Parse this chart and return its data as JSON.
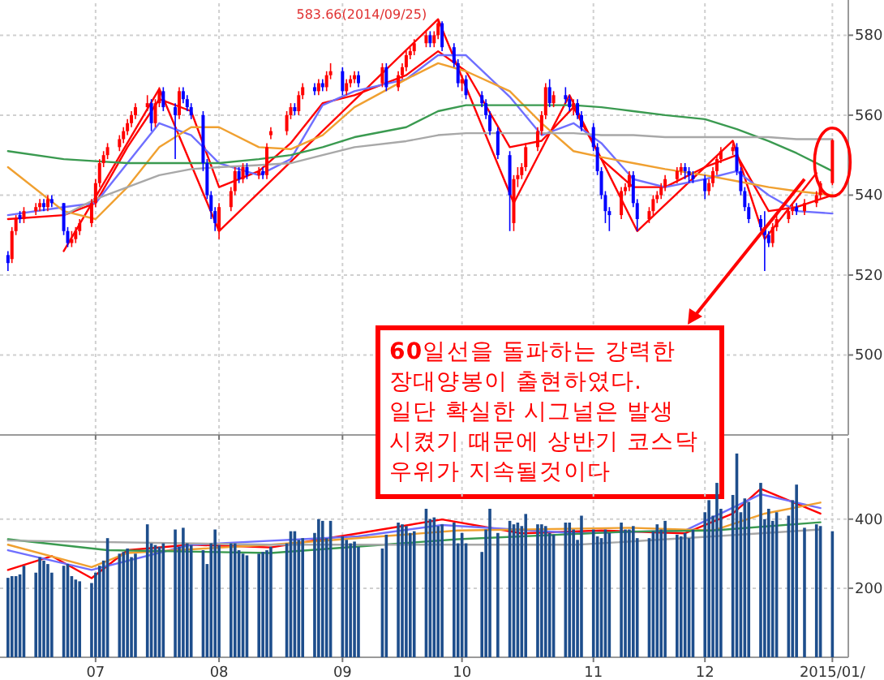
{
  "chart_data": [
    {
      "type": "candlestick",
      "xlim": [
        "2014-06-07",
        "2015-01-06"
      ],
      "ylim": [
        480,
        588
      ],
      "yticks": [
        500,
        520,
        540,
        560,
        580
      ],
      "grid": true,
      "tick_labels": "y",
      "xticks": [
        {
          "value": "2014-07-01",
          "label": null
        },
        {
          "value": "2014-08-01",
          "label": null
        },
        {
          "value": "2014-09-01",
          "label": null
        },
        {
          "value": "2014-10-01",
          "label": null
        },
        {
          "value": "2014-11-03",
          "label": null
        },
        {
          "value": "2014-12-01",
          "label": null
        },
        {
          "value": "2015-01-02",
          "label": null
        }
      ],
      "annotations": [
        {
          "text": "583.66(2014/09/25)",
          "x": "2014-09-25",
          "y": 583.66
        },
        {
          "text": "**60**일선을 돌파하는 강력한\n장대양봉이 출현하였다.\n일단 확실한 시그널은 발생\n시켰기 때문에 상반기 코스닥\n우위가 지속될것이다",
          "x": "2014-12-26",
          "y": 544
        }
      ],
      "series": [
        {
          "x": [
            "2014-06-09",
            "2014-06-10",
            "2014-06-11",
            "2014-06-12",
            "2014-06-13",
            "2014-06-16",
            "2014-06-17",
            "2014-06-18",
            "2014-06-19",
            "2014-06-20",
            "2014-06-23",
            "2014-06-24",
            "2014-06-25",
            "2014-06-26",
            "2014-06-27",
            "2014-06-30",
            "2014-07-01",
            "2014-07-02",
            "2014-07-03",
            "2014-07-04",
            "2014-07-07",
            "2014-07-08",
            "2014-07-09",
            "2014-07-10",
            "2014-07-11",
            "2014-07-14",
            "2014-07-15",
            "2014-07-16",
            "2014-07-17",
            "2014-07-18",
            "2014-07-21",
            "2014-07-22",
            "2014-07-23",
            "2014-07-24",
            "2014-07-25",
            "2014-07-28",
            "2014-07-29",
            "2014-07-30",
            "2014-07-31",
            "2014-08-01",
            "2014-08-04",
            "2014-08-05",
            "2014-08-06",
            "2014-08-07",
            "2014-08-08",
            "2014-08-11",
            "2014-08-12",
            "2014-08-13",
            "2014-08-14",
            "2014-08-18",
            "2014-08-19",
            "2014-08-20",
            "2014-08-21",
            "2014-08-22",
            "2014-08-25",
            "2014-08-26",
            "2014-08-27",
            "2014-08-28",
            "2014-08-29",
            "2014-09-01",
            "2014-09-02",
            "2014-09-03",
            "2014-09-04",
            "2014-09-05",
            "2014-09-11",
            "2014-09-12",
            "2014-09-15",
            "2014-09-16",
            "2014-09-17",
            "2014-09-18",
            "2014-09-19",
            "2014-09-22",
            "2014-09-23",
            "2014-09-24",
            "2014-09-25",
            "2014-09-26",
            "2014-09-29",
            "2014-09-30",
            "2014-10-01",
            "2014-10-02",
            "2014-10-06",
            "2014-10-07",
            "2014-10-08",
            "2014-10-10",
            "2014-10-13",
            "2014-10-14",
            "2014-10-15",
            "2014-10-16",
            "2014-10-17",
            "2014-10-20",
            "2014-10-21",
            "2014-10-22",
            "2014-10-23",
            "2014-10-24",
            "2014-10-27",
            "2014-10-28",
            "2014-10-29",
            "2014-10-30",
            "2014-10-31",
            "2014-11-03",
            "2014-11-04",
            "2014-11-05",
            "2014-11-06",
            "2014-11-07",
            "2014-11-10",
            "2014-11-11",
            "2014-11-12",
            "2014-11-13",
            "2014-11-14",
            "2014-11-17",
            "2014-11-18",
            "2014-11-19",
            "2014-11-20",
            "2014-11-21",
            "2014-11-24",
            "2014-11-25",
            "2014-11-26",
            "2014-11-27",
            "2014-11-28",
            "2014-12-01",
            "2014-12-02",
            "2014-12-03",
            "2014-12-04",
            "2014-12-05",
            "2014-12-08",
            "2014-12-09",
            "2014-12-10",
            "2014-12-11",
            "2014-12-12",
            "2014-12-15",
            "2014-12-16",
            "2014-12-17",
            "2014-12-18",
            "2014-12-19",
            "2014-12-22",
            "2014-12-23",
            "2014-12-24",
            "2014-12-26",
            "2014-12-29",
            "2014-12-30",
            "2015-01-02"
          ],
          "ohlc": [
            [
              525,
              526,
              521,
              523
            ],
            [
              524,
              532,
              523,
              531
            ],
            [
              531,
              535,
              530,
              534
            ],
            [
              535,
              536,
              533,
              534
            ],
            [
              534,
              537,
              533,
              536
            ],
            [
              536,
              538,
              535,
              537
            ],
            [
              537,
              539,
              536,
              538
            ],
            [
              538,
              539,
              536,
              537
            ],
            [
              537,
              540,
              536,
              539
            ],
            [
              539,
              540,
              537,
              538
            ],
            [
              538,
              538,
              530,
              531
            ],
            [
              531,
              532,
              527,
              528
            ],
            [
              528,
              531,
              527,
              529
            ],
            [
              529,
              532,
              528,
              531
            ],
            [
              531,
              534,
              530,
              533
            ],
            [
              533,
              539,
              532,
              538
            ],
            [
              538,
              544,
              537,
              543
            ],
            [
              543,
              549,
              542,
              548
            ],
            [
              548,
              551,
              547,
              550
            ],
            [
              550,
              553,
              549,
              552
            ],
            [
              552,
              555,
              551,
              554
            ],
            [
              554,
              557,
              553,
              556
            ],
            [
              556,
              559,
              555,
              558
            ],
            [
              558,
              561,
              557,
              560
            ],
            [
              560,
              563,
              559,
              562
            ],
            [
              562,
              565,
              561,
              563
            ],
            [
              563,
              564,
              556,
              558
            ],
            [
              558,
              564,
              557,
              563
            ],
            [
              563,
              567,
              562,
              566
            ],
            [
              566,
              567,
              561,
              562
            ],
            [
              562,
              563,
              549,
              560
            ],
            [
              560,
              567,
              559,
              566
            ],
            [
              566,
              567,
              563,
              564
            ],
            [
              564,
              565,
              561,
              562
            ],
            [
              562,
              563,
              559,
              560
            ],
            [
              560,
              561,
              546,
              548
            ],
            [
              548,
              549,
              539,
              540
            ],
            [
              540,
              541,
              534,
              536
            ],
            [
              536,
              537,
              531,
              533
            ],
            [
              531,
              538,
              529,
              537
            ],
            [
              537,
              542,
              536,
              541
            ],
            [
              541,
              547,
              540,
              546
            ],
            [
              546,
              547,
              543,
              544
            ],
            [
              544,
              548,
              543,
              547
            ],
            [
              547,
              548,
              544,
              545
            ],
            [
              545,
              547,
              544,
              546
            ],
            [
              546,
              547,
              544,
              545
            ],
            [
              545,
              553,
              544,
              552
            ],
            [
              555,
              557,
              554,
              556
            ],
            [
              556,
              561,
              555,
              560
            ],
            [
              560,
              563,
              559,
              562
            ],
            [
              562,
              563,
              560,
              561
            ],
            [
              561,
              566,
              560,
              565
            ],
            [
              565,
              568,
              564,
              567
            ],
            [
              567,
              568,
              565,
              566
            ],
            [
              566,
              569,
              565,
              568
            ],
            [
              568,
              569,
              566,
              567
            ],
            [
              567,
              571,
              566,
              570
            ],
            [
              570,
              573,
              569,
              571
            ],
            [
              571,
              572,
              565,
              566
            ],
            [
              566,
              569,
              565,
              568
            ],
            [
              568,
              570,
              567,
              569
            ],
            [
              569,
              571,
              568,
              570
            ],
            [
              570,
              571,
              567,
              568
            ],
            [
              568,
              573,
              567,
              572
            ],
            [
              572,
              573,
              566,
              567
            ],
            [
              567,
              571,
              566,
              570
            ],
            [
              570,
              573,
              569,
              572
            ],
            [
              572,
              576,
              571,
              575
            ],
            [
              575,
              577,
              574,
              576
            ],
            [
              576,
              579,
              575,
              578
            ],
            [
              578,
              581,
              577,
              580
            ],
            [
              580,
              581,
              577,
              578
            ],
            [
              578,
              581,
              577,
              580
            ],
            [
              580,
              583.66,
              579,
              583
            ],
            [
              583,
              583.5,
              576,
              577
            ],
            [
              577,
              578,
              572,
              573
            ],
            [
              573,
              574,
              567,
              568
            ],
            [
              568,
              570,
              566,
              569
            ],
            [
              569,
              570,
              564,
              565
            ],
            [
              565,
              566,
              562,
              563
            ],
            [
              563,
              564,
              559,
              560
            ],
            [
              560,
              561,
              555,
              556
            ],
            [
              556,
              557,
              549,
              550
            ],
            [
              550,
              551,
              531,
              540
            ],
            [
              533,
              545,
              531,
              544
            ],
            [
              544,
              547,
              542,
              545
            ],
            [
              545,
              548,
              544,
              547
            ],
            [
              547,
              553,
              546,
              552
            ],
            [
              552,
              557,
              551,
              556
            ],
            [
              556,
              561,
              555,
              560
            ],
            [
              560,
              568,
              559,
              567
            ],
            [
              567,
              569,
              562,
              563
            ],
            [
              563,
              566,
              562,
              565
            ],
            [
              565,
              567,
              563,
              564
            ],
            [
              564,
              565,
              561,
              562
            ],
            [
              562,
              564,
              560,
              563
            ],
            [
              563,
              564,
              559,
              560
            ],
            [
              560,
              561,
              556,
              557
            ],
            [
              557,
              558,
              551,
              552
            ],
            [
              552,
              553,
              545,
              546
            ],
            [
              546,
              547,
              539,
              540
            ],
            [
              540,
              541,
              533,
              536
            ],
            [
              536,
              537,
              531,
              535
            ],
            [
              535,
              542,
              534,
              541
            ],
            [
              541,
              543,
              540,
              542
            ],
            [
              542,
              546,
              541,
              545
            ],
            [
              545,
              546,
              537,
              538
            ],
            [
              538,
              539,
              531,
              534
            ],
            [
              534,
              537,
              533,
              536
            ],
            [
              536,
              540,
              535,
              539
            ],
            [
              539,
              541,
              538,
              540
            ],
            [
              540,
              543,
              539,
              542
            ],
            [
              542,
              545,
              541,
              544
            ],
            [
              544,
              547,
              543,
              546
            ],
            [
              546,
              548,
              545,
              547
            ],
            [
              547,
              548,
              544,
              546
            ],
            [
              546,
              547,
              543,
              545
            ],
            [
              545,
              546,
              543,
              544
            ],
            [
              544,
              545,
              539,
              541
            ],
            [
              541,
              544,
              540,
              543
            ],
            [
              543,
              547,
              542,
              546
            ],
            [
              546,
              550,
              545,
              549
            ],
            [
              549,
              552,
              548,
              551
            ],
            [
              551,
              553,
              550,
              552
            ],
            [
              552,
              553,
              545,
              546
            ],
            [
              546,
              547,
              540,
              541
            ],
            [
              541,
              542,
              536,
              537
            ],
            [
              537,
              538,
              533,
              534
            ],
            [
              534,
              535,
              531,
              532
            ],
            [
              532,
              536,
              521,
              530
            ],
            [
              530,
              531,
              527,
              528
            ],
            [
              528,
              533,
              527,
              532
            ],
            [
              532,
              535,
              531,
              534
            ],
            [
              534,
              537,
              533,
              536
            ],
            [
              536,
              538,
              535,
              537
            ],
            [
              537,
              538,
              535,
              536
            ],
            [
              536,
              539,
              535,
              538
            ],
            [
              538,
              541,
              537,
              540
            ],
            [
              540,
              543.5,
              539,
              542.97
            ],
            [
              543,
              554,
              542.5,
              553.73
            ]
          ],
          "colors": [
            "#0000ff",
            "#ff0000",
            "#ff0000",
            "#0000ff",
            "#ff0000",
            "#ff0000",
            "#ff0000",
            "#0000ff",
            "#ff0000",
            "#0000ff",
            "#0000ff",
            "#0000ff",
            "#ff0000",
            "#ff0000",
            "#ff0000",
            "#ff0000",
            "#ff0000",
            "#ff0000",
            "#ff0000",
            "#ff0000",
            "#ff0000",
            "#ff0000",
            "#ff0000",
            "#ff0000",
            "#ff0000",
            "#ff0000",
            "#0000ff",
            "#ff0000",
            "#ff0000",
            "#0000ff",
            "#0000ff",
            "#ff0000",
            "#0000ff",
            "#0000ff",
            "#0000ff",
            "#0000ff",
            "#0000ff",
            "#0000ff",
            "#0000ff",
            "#ff0000",
            "#ff0000",
            "#ff0000",
            "#0000ff",
            "#ff0000",
            "#0000ff",
            "#ff0000",
            "#0000ff",
            "#ff0000",
            "#ff0000",
            "#ff0000",
            "#ff0000",
            "#0000ff",
            "#ff0000",
            "#ff0000",
            "#0000ff",
            "#ff0000",
            "#0000ff",
            "#ff0000",
            "#ff0000",
            "#0000ff",
            "#ff0000",
            "#ff0000",
            "#ff0000",
            "#0000ff",
            "#ff0000",
            "#0000ff",
            "#ff0000",
            "#ff0000",
            "#ff0000",
            "#ff0000",
            "#ff0000",
            "#ff0000",
            "#0000ff",
            "#ff0000",
            "#ff0000",
            "#0000ff",
            "#0000ff",
            "#0000ff",
            "#ff0000",
            "#0000ff",
            "#0000ff",
            "#0000ff",
            "#0000ff",
            "#0000ff",
            "#0000ff",
            "#ff0000",
            "#ff0000",
            "#ff0000",
            "#ff0000",
            "#ff0000",
            "#ff0000",
            "#ff0000",
            "#0000ff",
            "#ff0000",
            "#0000ff",
            "#0000ff",
            "#ff0000",
            "#0000ff",
            "#0000ff",
            "#0000ff",
            "#0000ff",
            "#0000ff",
            "#0000ff",
            "#0000ff",
            "#ff0000",
            "#ff0000",
            "#ff0000",
            "#0000ff",
            "#0000ff",
            "#ff0000",
            "#ff0000",
            "#ff0000",
            "#ff0000",
            "#ff0000",
            "#ff0000",
            "#ff0000",
            "#0000ff",
            "#0000ff",
            "#0000ff",
            "#0000ff",
            "#ff0000",
            "#ff0000",
            "#ff0000",
            "#ff0000",
            "#ff0000",
            "#0000ff",
            "#0000ff",
            "#0000ff",
            "#0000ff",
            "#0000ff",
            "#0000ff",
            "#0000ff",
            "#ff0000",
            "#ff0000",
            "#ff0000",
            "#ff0000",
            "#0000ff",
            "#ff0000",
            "#ff0000",
            "#ff0000",
            "#ff0000"
          ]
        },
        {
          "type": "line",
          "color": "#ff0000",
          "x": [
            "2014-06-23",
            "2014-07-17",
            "2014-08-01",
            "2014-09-25",
            "2014-10-14",
            "2014-10-28",
            "2014-11-14",
            "2014-12-08",
            "2014-12-16",
            "2014-12-29"
          ],
          "values": [
            526,
            566.6,
            531,
            584,
            538,
            565,
            531,
            553.6,
            529,
            545.5
          ]
        },
        {
          "type": "line",
          "color": "#ff0000",
          "x": [
            "2014-06-09",
            "2014-06-23",
            "2014-07-01",
            "2014-07-09",
            "2014-07-17",
            "2014-07-25",
            "2014-08-01",
            "2014-08-11",
            "2014-08-19",
            "2014-08-27",
            "2014-09-04",
            "2014-09-17",
            "2014-09-25",
            "2014-10-02",
            "2014-10-13",
            "2014-10-21",
            "2014-10-29",
            "2014-11-05",
            "2014-11-13",
            "2014-11-21",
            "2014-12-01",
            "2014-12-09",
            "2014-12-17",
            "2014-12-24",
            "2015-01-02"
          ],
          "values": [
            534,
            535,
            538,
            552,
            564,
            561,
            542,
            546,
            553,
            563,
            565,
            570,
            576,
            571,
            552,
            553.6,
            562,
            549,
            542,
            542,
            547,
            550,
            536,
            537,
            540
          ]
        },
        {
          "type": "line",
          "color": "#6f6fff",
          "x": [
            "2014-06-09",
            "2014-06-23",
            "2014-07-01",
            "2014-07-09",
            "2014-07-17",
            "2014-07-25",
            "2014-08-01",
            "2014-08-11",
            "2014-08-19",
            "2014-08-27",
            "2014-09-04",
            "2014-09-17",
            "2014-09-25",
            "2014-10-02",
            "2014-10-13",
            "2014-10-21",
            "2014-10-29",
            "2014-11-05",
            "2014-11-13",
            "2014-11-21",
            "2014-12-01",
            "2014-12-09",
            "2014-12-17",
            "2014-12-24",
            "2015-01-02"
          ],
          "values": [
            535,
            537,
            538,
            548,
            558,
            555,
            548,
            545,
            549,
            562.5,
            566,
            569,
            575,
            575,
            564.6,
            555,
            558,
            553,
            544,
            542,
            544,
            546,
            540,
            536,
            535.4
          ]
        },
        {
          "type": "line",
          "color": "#f0a030",
          "x": [
            "2014-06-09",
            "2014-06-23",
            "2014-07-01",
            "2014-07-09",
            "2014-07-17",
            "2014-07-25",
            "2014-08-01",
            "2014-08-11",
            "2014-08-19",
            "2014-08-27",
            "2014-09-04",
            "2014-09-17",
            "2014-09-25",
            "2014-10-02",
            "2014-10-13",
            "2014-10-21",
            "2014-10-29",
            "2014-11-05",
            "2014-11-13",
            "2014-11-21",
            "2014-12-01",
            "2014-12-09",
            "2014-12-17",
            "2014-12-24",
            "2015-01-02"
          ],
          "values": [
            547,
            536,
            534,
            542,
            552,
            557,
            557,
            552,
            551.5,
            555,
            562,
            569,
            573,
            571,
            566,
            558,
            551,
            549.5,
            548,
            546.5,
            545,
            543.5,
            542,
            541,
            540
          ]
        },
        {
          "type": "line",
          "color": "#3a9a50",
          "x": [
            "2014-06-09",
            "2014-06-23",
            "2014-07-01",
            "2014-07-09",
            "2014-07-17",
            "2014-07-25",
            "2014-08-01",
            "2014-08-11",
            "2014-08-19",
            "2014-08-27",
            "2014-09-04",
            "2014-09-17",
            "2014-09-25",
            "2014-10-02",
            "2014-10-13",
            "2014-10-21",
            "2014-10-29",
            "2014-11-05",
            "2014-11-13",
            "2014-11-21",
            "2014-12-01",
            "2014-12-09",
            "2014-12-17",
            "2014-12-24",
            "2015-01-02"
          ],
          "values": [
            551,
            549,
            548.5,
            548,
            548,
            548,
            548,
            549,
            550,
            552,
            554.5,
            557,
            561,
            562.5,
            562.5,
            562.5,
            562.5,
            562,
            561,
            560,
            559,
            556.5,
            553.5,
            550.5,
            546
          ]
        },
        {
          "type": "line",
          "color": "#a8a8a8",
          "x": [
            "2014-06-23",
            "2014-07-01",
            "2014-07-09",
            "2014-07-17",
            "2014-07-25",
            "2014-08-01",
            "2014-08-11",
            "2014-08-19",
            "2014-08-27",
            "2014-09-04",
            "2014-09-17",
            "2014-09-25",
            "2014-10-02",
            "2014-10-13",
            "2014-10-21",
            "2014-10-29",
            "2014-11-05",
            "2014-11-13",
            "2014-11-21",
            "2014-12-01",
            "2014-12-09",
            "2014-12-17",
            "2014-12-24",
            "2015-01-02"
          ],
          "values": [
            535,
            539,
            542,
            545,
            546.5,
            547,
            547.5,
            548,
            550,
            552,
            553.5,
            555,
            555.5,
            555.5,
            555.5,
            555.5,
            555,
            555,
            554.5,
            554.5,
            554.5,
            554.5,
            554,
            554
          ]
        }
      ]
    },
    {
      "type": "bar",
      "xlim": [
        "2014-06-07",
        "2015-01-06"
      ],
      "ylim": [
        0,
        625
      ],
      "yticks": [
        {
          "value": 200,
          "label": "200."
        },
        {
          "value": 400,
          "label": "400."
        }
      ],
      "grid": true,
      "xticks": [
        {
          "value": "2014-07-01",
          "label": "07"
        },
        {
          "value": "2014-08-01",
          "label": "08"
        },
        {
          "value": "2014-09-01",
          "label": "09"
        },
        {
          "value": "2014-10-01",
          "label": "10"
        },
        {
          "value": "2014-11-03",
          "label": "11"
        },
        {
          "value": "2014-12-01",
          "label": "12"
        },
        {
          "value": "2015-01-02",
          "label": "2015/01/"
        }
      ],
      "series": [
        {
          "color": "#1e4e8c",
          "x": [
            "2014-06-09",
            "2014-06-10",
            "2014-06-11",
            "2014-06-12",
            "2014-06-13",
            "2014-06-16",
            "2014-06-17",
            "2014-06-18",
            "2014-06-19",
            "2014-06-20",
            "2014-06-23",
            "2014-06-24",
            "2014-06-25",
            "2014-06-26",
            "2014-06-27",
            "2014-06-30",
            "2014-07-01",
            "2014-07-02",
            "2014-07-03",
            "2014-07-04",
            "2014-07-07",
            "2014-07-08",
            "2014-07-09",
            "2014-07-10",
            "2014-07-11",
            "2014-07-14",
            "2014-07-15",
            "2014-07-16",
            "2014-07-17",
            "2014-07-18",
            "2014-07-21",
            "2014-07-22",
            "2014-07-23",
            "2014-07-24",
            "2014-07-25",
            "2014-07-28",
            "2014-07-29",
            "2014-07-30",
            "2014-07-31",
            "2014-08-01",
            "2014-08-04",
            "2014-08-05",
            "2014-08-06",
            "2014-08-07",
            "2014-08-08",
            "2014-08-11",
            "2014-08-12",
            "2014-08-13",
            "2014-08-14",
            "2014-08-18",
            "2014-08-19",
            "2014-08-20",
            "2014-08-21",
            "2014-08-22",
            "2014-08-25",
            "2014-08-26",
            "2014-08-27",
            "2014-08-28",
            "2014-08-29",
            "2014-09-01",
            "2014-09-02",
            "2014-09-03",
            "2014-09-04",
            "2014-09-05",
            "2014-09-11",
            "2014-09-12",
            "2014-09-15",
            "2014-09-16",
            "2014-09-17",
            "2014-09-18",
            "2014-09-19",
            "2014-09-22",
            "2014-09-23",
            "2014-09-24",
            "2014-09-25",
            "2014-09-26",
            "2014-09-29",
            "2014-09-30",
            "2014-10-01",
            "2014-10-02",
            "2014-10-06",
            "2014-10-07",
            "2014-10-08",
            "2014-10-10",
            "2014-10-13",
            "2014-10-14",
            "2014-10-15",
            "2014-10-16",
            "2014-10-17",
            "2014-10-20",
            "2014-10-21",
            "2014-10-22",
            "2014-10-23",
            "2014-10-24",
            "2014-10-27",
            "2014-10-28",
            "2014-10-29",
            "2014-10-30",
            "2014-10-31",
            "2014-11-03",
            "2014-11-04",
            "2014-11-05",
            "2014-11-06",
            "2014-11-07",
            "2014-11-10",
            "2014-11-11",
            "2014-11-12",
            "2014-11-13",
            "2014-11-14",
            "2014-11-17",
            "2014-11-18",
            "2014-11-19",
            "2014-11-20",
            "2014-11-21",
            "2014-11-24",
            "2014-11-25",
            "2014-11-26",
            "2014-11-27",
            "2014-11-28",
            "2014-12-01",
            "2014-12-02",
            "2014-12-03",
            "2014-12-04",
            "2014-12-05",
            "2014-12-08",
            "2014-12-09",
            "2014-12-10",
            "2014-12-11",
            "2014-12-12",
            "2014-12-15",
            "2014-12-16",
            "2014-12-17",
            "2014-12-18",
            "2014-12-19",
            "2014-12-22",
            "2014-12-23",
            "2014-12-24",
            "2014-12-26",
            "2014-12-29",
            "2014-12-30",
            "2015-01-02"
          ],
          "values": [
            230,
            235,
            235,
            240,
            265,
            245,
            290,
            280,
            270,
            245,
            265,
            270,
            235,
            225,
            220,
            215,
            245,
            265,
            280,
            345,
            300,
            305,
            315,
            290,
            300,
            385,
            330,
            325,
            320,
            330,
            370,
            320,
            375,
            330,
            325,
            310,
            270,
            330,
            370,
            325,
            330,
            330,
            310,
            300,
            295,
            300,
            305,
            310,
            320,
            330,
            365,
            365,
            340,
            345,
            360,
            400,
            395,
            345,
            395,
            350,
            340,
            330,
            335,
            320,
            315,
            355,
            390,
            385,
            380,
            360,
            365,
            430,
            400,
            405,
            380,
            385,
            390,
            330,
            360,
            330,
            305,
            370,
            430,
            360,
            395,
            385,
            390,
            380,
            415,
            385,
            385,
            380,
            360,
            355,
            390,
            390,
            370,
            340,
            410,
            370,
            350,
            345,
            370,
            360,
            390,
            370,
            370,
            380,
            345,
            345,
            365,
            385,
            370,
            395,
            355,
            350,
            360,
            345,
            370,
            420,
            455,
            410,
            505,
            430,
            470,
            590,
            420,
            460,
            450,
            505,
            400,
            430,
            395,
            420,
            410,
            455,
            500,
            375,
            385,
            380,
            365
          ]
        },
        {
          "type": "line",
          "color": "#ff0000",
          "x": [
            "2014-06-09",
            "2014-06-20",
            "2014-06-30",
            "2014-07-09",
            "2014-07-25",
            "2014-08-14",
            "2014-09-05",
            "2014-09-26",
            "2014-10-16",
            "2014-11-05",
            "2014-11-26",
            "2014-12-08",
            "2014-12-15",
            "2014-12-30"
          ],
          "values": [
            253,
            293,
            229,
            310,
            326,
            318,
            359,
            399,
            359,
            367,
            359,
            416,
            488,
            416
          ]
        },
        {
          "type": "line",
          "color": "#6f6fff",
          "x": [
            "2014-06-09",
            "2014-06-30",
            "2014-07-25",
            "2014-09-05",
            "2014-09-26",
            "2014-10-30",
            "2014-11-26",
            "2014-12-15",
            "2014-12-30"
          ],
          "values": [
            310,
            253,
            326,
            350,
            383,
            359,
            367,
            472,
            432
          ]
        },
        {
          "type": "line",
          "color": "#f0a030",
          "x": [
            "2014-06-09",
            "2014-06-30",
            "2014-07-09",
            "2014-08-14",
            "2014-09-30",
            "2014-11-12",
            "2014-12-03",
            "2014-12-16",
            "2014-12-30"
          ],
          "values": [
            326,
            261,
            302,
            326,
            367,
            375,
            367,
            416,
            448
          ]
        },
        {
          "type": "line",
          "color": "#3a9a50",
          "x": [
            "2014-06-09",
            "2014-07-04",
            "2014-08-14",
            "2014-09-30",
            "2014-11-12",
            "2014-12-03",
            "2014-12-30"
          ],
          "values": [
            342,
            310,
            302,
            342,
            364,
            367,
            391
          ]
        },
        {
          "type": "line",
          "color": "#a8a8a8",
          "x": [
            "2014-06-09",
            "2014-08-14",
            "2014-10-30",
            "2014-12-03",
            "2014-12-30"
          ],
          "values": [
            338,
            326,
            326,
            350,
            370
          ]
        }
      ]
    }
  ]
}
